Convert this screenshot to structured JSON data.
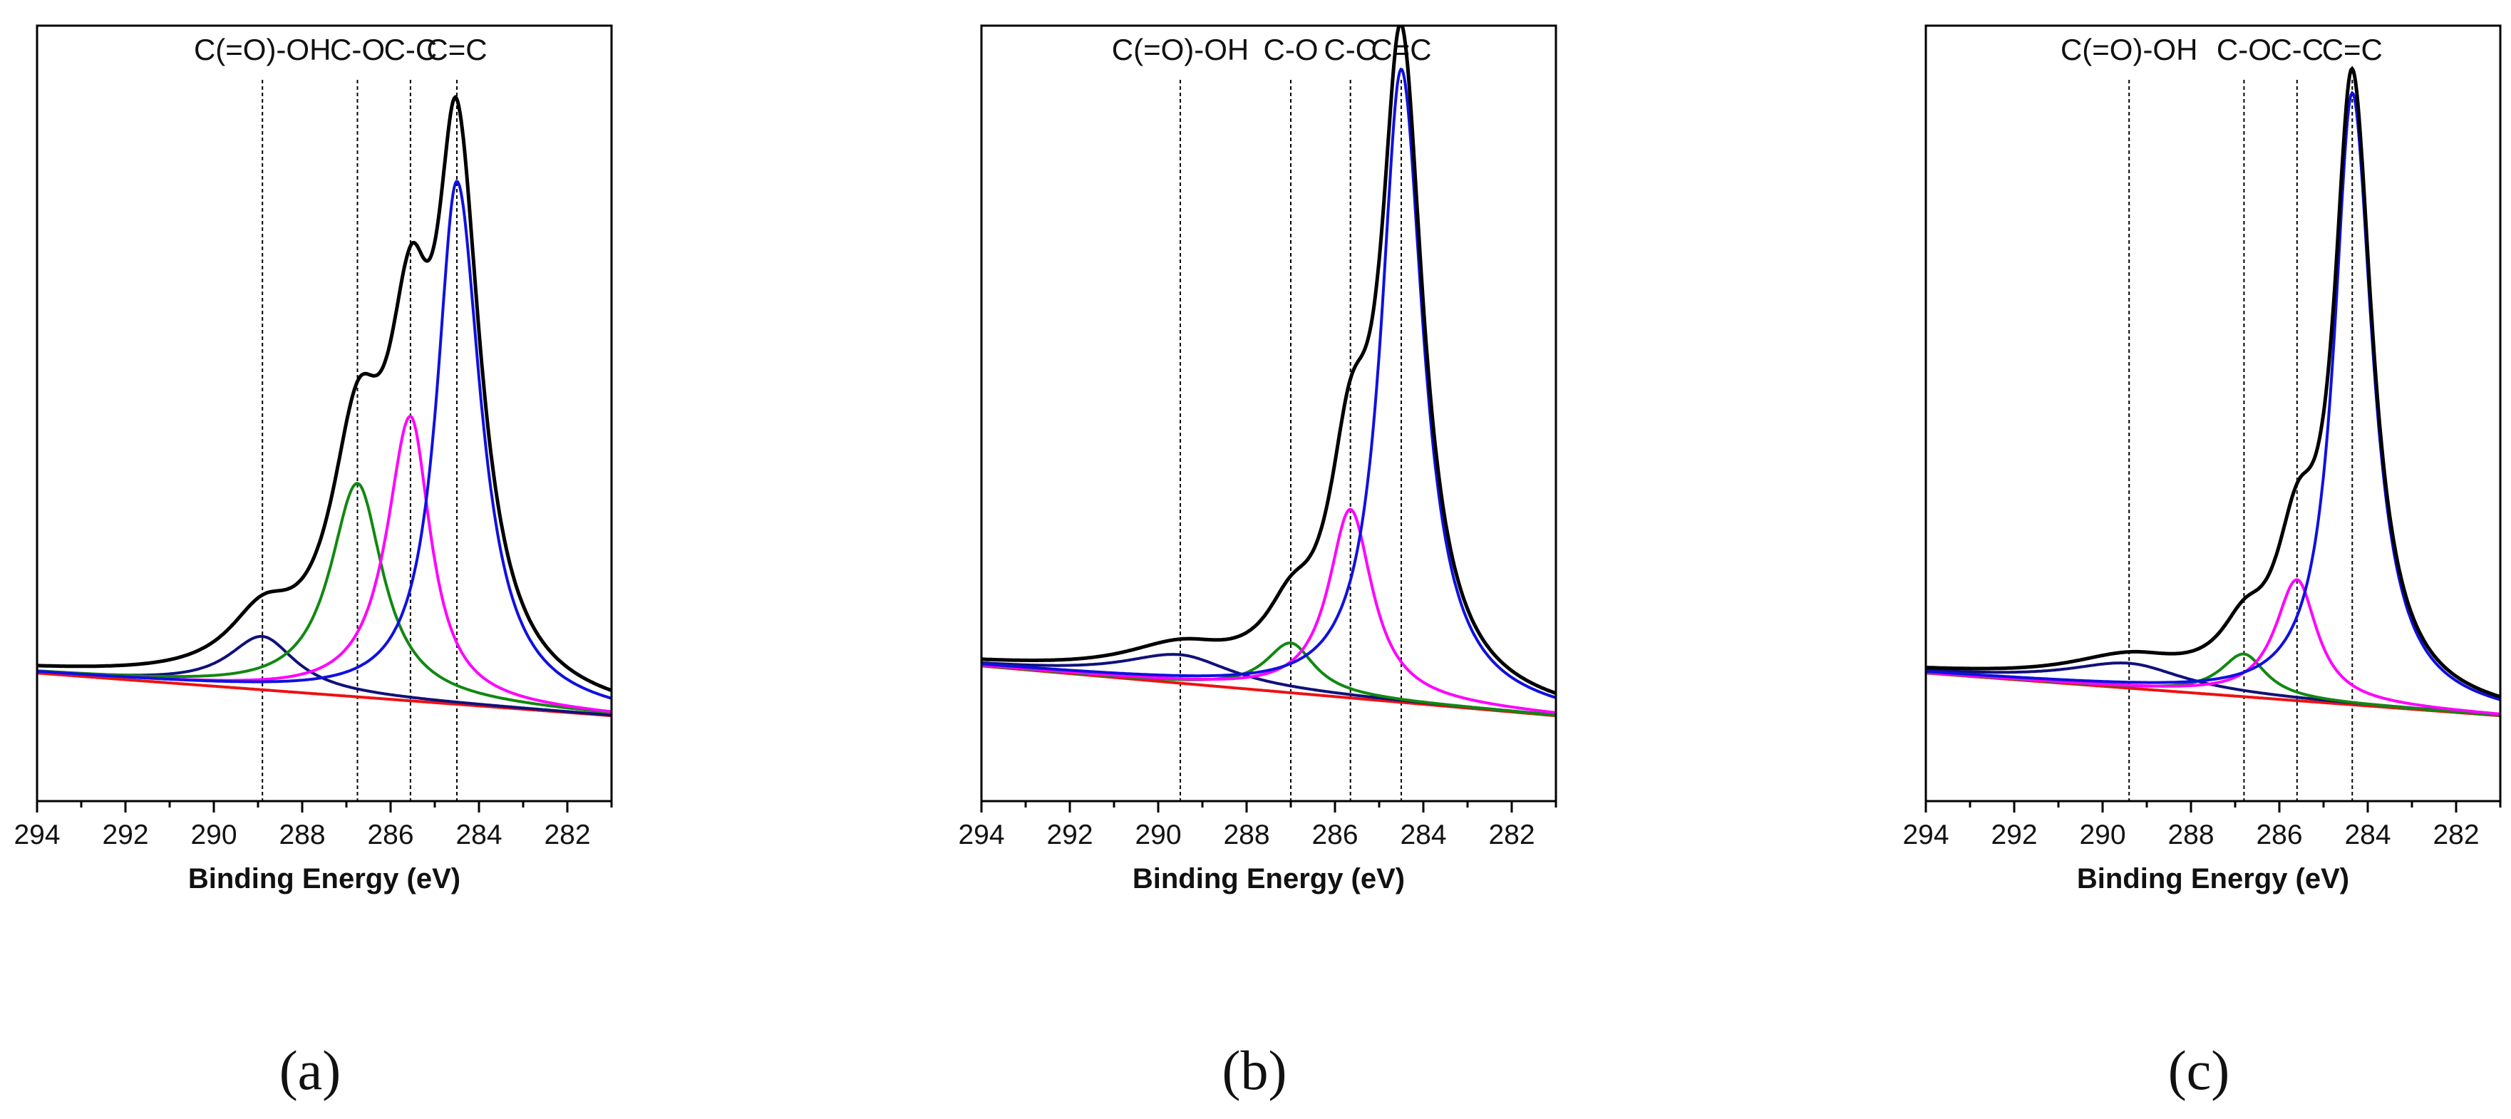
{
  "figure_labels": [
    "(a)",
    "(b)",
    "(c)"
  ],
  "colors": {
    "envelope": "#000000",
    "c_eq_c": "#1010e0",
    "c_c": "#ff00ff",
    "c_o": "#118811",
    "cooh": "#10107a",
    "background": "#ee1111"
  },
  "chart_data": [
    {
      "type": "line",
      "panel": "(a)",
      "xlabel": "Binding Energy (eV)",
      "ylabel": "",
      "xlim": [
        294,
        281
      ],
      "ylim": [
        -0.09,
        1.0
      ],
      "x_reversed": true,
      "x_ticks": [
        "294",
        "292",
        "290",
        "288",
        "286",
        "284",
        "282"
      ],
      "x_tick_values": [
        294,
        292,
        290,
        288,
        286,
        284,
        282
      ],
      "peak_markers": [
        {
          "label": "C(=O)-OH",
          "x": 288.9
        },
        {
          "label": "C-O",
          "x": 286.75
        },
        {
          "label": "C-C",
          "x": 285.55
        },
        {
          "label": "C=C",
          "x": 284.5
        }
      ],
      "baseline": {
        "start": 0.09,
        "end": 0.03
      },
      "series": [
        {
          "name": "C=C",
          "color_key": "c_eq_c",
          "center": 284.5,
          "height": 0.735,
          "width_left": 0.55,
          "width_right": 0.65
        },
        {
          "name": "C-C",
          "color_key": "c_c",
          "center": 285.55,
          "height": 0.4,
          "width_left": 0.65,
          "width_right": 0.55
        },
        {
          "name": "C-O",
          "color_key": "c_o",
          "center": 286.75,
          "height": 0.3,
          "width_left": 0.75,
          "width_right": 0.7
        },
        {
          "name": "C(=O)-OH",
          "color_key": "cooh",
          "center": 288.9,
          "height": 0.075,
          "width_left": 0.95,
          "width_right": 0.9
        }
      ]
    },
    {
      "type": "line",
      "panel": "(b)",
      "xlabel": "Binding Energy (eV)",
      "ylabel": "",
      "xlim": [
        294,
        281
      ],
      "ylim": [
        -0.09,
        1.0
      ],
      "x_reversed": true,
      "x_ticks": [
        "294",
        "292",
        "290",
        "288",
        "286",
        "284",
        "282"
      ],
      "x_tick_values": [
        294,
        292,
        290,
        288,
        286,
        284,
        282
      ],
      "peak_markers": [
        {
          "label": "C(=O)-OH",
          "x": 289.5
        },
        {
          "label": "C-O",
          "x": 287.0
        },
        {
          "label": "C-C",
          "x": 285.65
        },
        {
          "label": "C=C",
          "x": 284.5
        }
      ],
      "baseline": {
        "start": 0.1,
        "end": 0.03
      },
      "series": [
        {
          "name": "C=C",
          "color_key": "c_eq_c",
          "center": 284.5,
          "height": 0.89,
          "width_left": 0.55,
          "width_right": 0.6
        },
        {
          "name": "C-C",
          "color_key": "c_c",
          "center": 285.65,
          "height": 0.265,
          "width_left": 0.6,
          "width_right": 0.6
        },
        {
          "name": "C-O",
          "color_key": "c_o",
          "center": 287.0,
          "height": 0.07,
          "width_left": 0.7,
          "width_right": 0.65
        },
        {
          "name": "C(=O)-OH",
          "color_key": "cooh",
          "center": 289.5,
          "height": 0.04,
          "width_left": 1.6,
          "width_right": 1.4
        }
      ]
    },
    {
      "type": "line",
      "panel": "(c)",
      "xlabel": "Binding Energy (eV)",
      "ylabel": "",
      "xlim": [
        294,
        281
      ],
      "ylim": [
        -0.09,
        1.0
      ],
      "x_reversed": true,
      "x_ticks": [
        "294",
        "292",
        "290",
        "288",
        "286",
        "284",
        "282"
      ],
      "x_tick_values": [
        294,
        292,
        290,
        288,
        286,
        284,
        282
      ],
      "peak_markers": [
        {
          "label": "C(=O)-OH",
          "x": 289.4
        },
        {
          "label": "C-O",
          "x": 286.8
        },
        {
          "label": "C-C",
          "x": 285.6
        },
        {
          "label": "C=C",
          "x": 284.35
        }
      ],
      "baseline": {
        "start": 0.09,
        "end": 0.03
      },
      "series": [
        {
          "name": "C=C",
          "color_key": "c_eq_c",
          "center": 284.35,
          "height": 0.86,
          "width_left": 0.5,
          "width_right": 0.55
        },
        {
          "name": "C-C",
          "color_key": "c_c",
          "center": 285.6,
          "height": 0.17,
          "width_left": 0.6,
          "width_right": 0.55
        },
        {
          "name": "C-O",
          "color_key": "c_o",
          "center": 286.8,
          "height": 0.06,
          "width_left": 0.65,
          "width_right": 0.6
        },
        {
          "name": "C(=O)-OH",
          "color_key": "cooh",
          "center": 289.4,
          "height": 0.035,
          "width_left": 1.7,
          "width_right": 1.5
        }
      ]
    }
  ]
}
